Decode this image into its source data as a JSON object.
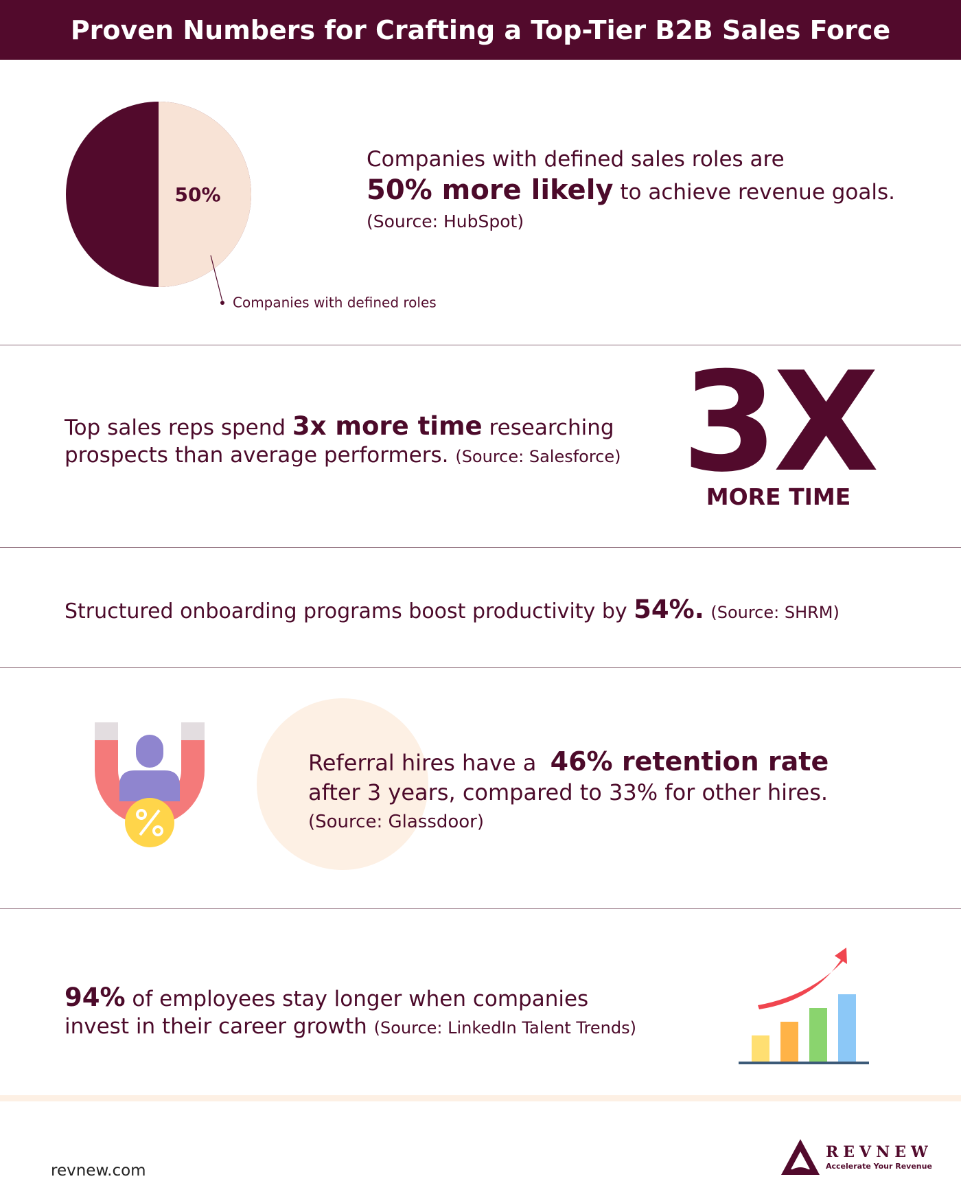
{
  "header": {
    "title": "Proven Numbers for Crafting a Top-Tier B2B Sales Force"
  },
  "sections": [
    {
      "pie": {
        "value": 50,
        "label": "50%",
        "legend": "Companies with defined roles"
      },
      "text": {
        "line1": "Companies with defined sales roles are",
        "highlight": "50% more likely",
        "rest": "to achieve revenue goals.",
        "source": "(Source: HubSpot)"
      }
    },
    {
      "text": {
        "lead": "Top sales reps spend",
        "highlight": "3x more time",
        "rest": "researching",
        "line2": "prospects than average performers.",
        "source": "(Source: Salesforce)"
      },
      "big_stat": "3X",
      "big_caption": "MORE TIME"
    },
    {
      "text": {
        "lead": "Structured onboarding programs boost productivity by",
        "highlight": "54%.",
        "source": "(Source: SHRM)"
      }
    },
    {
      "text": {
        "lead": "Referral hires have a",
        "highlight": "46% retention rate",
        "line2": "after 3 years, compared to 33% for other hires.",
        "source": "(Source: Glassdoor)"
      }
    },
    {
      "text": {
        "highlight": "94%",
        "rest": "of employees stay longer when companies",
        "line2": "invest in their career growth",
        "source": "(Source: LinkedIn Talent Trends)"
      }
    }
  ],
  "footer": {
    "website": "revnew.com",
    "logo_name": "REVNEW",
    "logo_tagline": "Accelerate Your Revenue"
  }
}
